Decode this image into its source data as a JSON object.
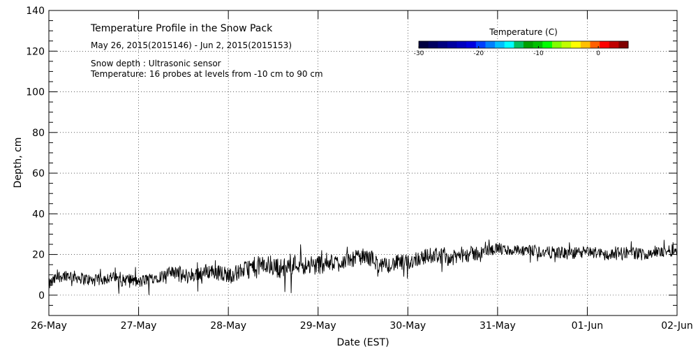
{
  "chart_data": {
    "type": "line",
    "title": "Temperature Profile in the Snow Pack",
    "subtitle": "May 26, 2015(2015146) - Jun  2, 2015(2015153)",
    "notes": [
      "Snow depth : Ultrasonic sensor",
      "Temperature: 16 probes at levels from -10 cm to 90 cm"
    ],
    "xlabel": "Date (EST)",
    "ylabel": "Depth, cm",
    "ylim": [
      -10,
      140
    ],
    "yticks": [
      "0",
      "20",
      "40",
      "60",
      "80",
      "100",
      "120",
      "140"
    ],
    "xticks": [
      "26-May",
      "27-May",
      "28-May",
      "29-May",
      "30-May",
      "31-May",
      "01-Jun",
      "02-Jun"
    ],
    "xlim_days": [
      0,
      7
    ],
    "grid": true,
    "series": [
      {
        "x_days": [
          0,
          0.1,
          0.2,
          0.3,
          0.4,
          0.5,
          0.6,
          0.7,
          0.8,
          0.9,
          1.0,
          1.1,
          1.2,
          1.3,
          1.4,
          1.5,
          1.6,
          1.7,
          1.8,
          1.9,
          2.0,
          2.1,
          2.2,
          2.3,
          2.4,
          2.5,
          2.6,
          2.7,
          2.8,
          2.9,
          3.0,
          3.1,
          3.2,
          3.3,
          3.4,
          3.5,
          3.6,
          3.7,
          3.8,
          3.9,
          4.0,
          4.1,
          4.2,
          4.3,
          4.4,
          4.5,
          4.6,
          4.7,
          4.8,
          4.9,
          5.0,
          5.1,
          5.2,
          5.3,
          5.4,
          5.5,
          5.6,
          5.7,
          5.8,
          5.9,
          6.0,
          6.1,
          6.2,
          6.3,
          6.4,
          6.5,
          6.6,
          6.7,
          6.8,
          6.9,
          7.0
        ],
        "values": [
          5,
          9,
          10,
          9,
          8,
          7,
          8,
          9,
          7,
          8,
          6,
          8,
          9,
          10,
          12,
          9,
          10,
          11,
          12,
          11,
          10,
          11,
          13,
          14,
          15,
          14,
          13,
          15,
          16,
          14,
          15,
          16,
          16,
          17,
          18,
          19,
          18,
          14,
          15,
          16,
          16,
          18,
          19,
          20,
          19,
          18,
          20,
          20,
          21,
          22,
          23,
          22,
          22,
          21,
          22,
          21,
          21,
          21,
          20,
          21,
          21,
          21,
          20,
          20,
          21,
          21,
          20,
          21,
          21,
          22,
          22
        ],
        "noise_amplitude": [
          3,
          3,
          3,
          3,
          3,
          3,
          3,
          3,
          3,
          3,
          3,
          3,
          3,
          3,
          4,
          4,
          4,
          4,
          4,
          4,
          4,
          4,
          5,
          5,
          5,
          5,
          5,
          5,
          5,
          5,
          5,
          4,
          4,
          4,
          4,
          4,
          4,
          4,
          4,
          4,
          4,
          4,
          4,
          4,
          4,
          4,
          4,
          4,
          3,
          3,
          3,
          3,
          3,
          3,
          3,
          3,
          3,
          3,
          3,
          3,
          3,
          3,
          3,
          3,
          3,
          3,
          3,
          3,
          3,
          3,
          3
        ]
      }
    ],
    "colorbar": {
      "title": "Temperature (C)",
      "range": [
        -30,
        5
      ],
      "ticks": [
        "-30",
        "-20",
        "-10",
        "0"
      ],
      "tick_values": [
        -30,
        -20,
        -10,
        0
      ],
      "colors": [
        "#000040",
        "#000060",
        "#000080",
        "#0000a0",
        "#0000c0",
        "#0000e0",
        "#0040ff",
        "#0080ff",
        "#00c0ff",
        "#00ffff",
        "#00c060",
        "#00a000",
        "#00c000",
        "#00ff00",
        "#80ff00",
        "#c0ff00",
        "#ffff00",
        "#ffc000",
        "#ff6000",
        "#ff0000",
        "#c00000",
        "#800000"
      ]
    }
  }
}
